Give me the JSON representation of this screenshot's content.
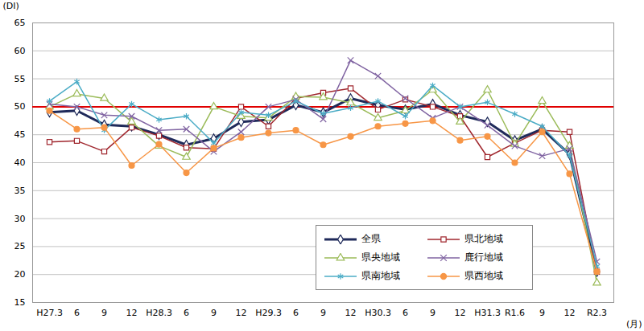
{
  "chart_data": {
    "type": "line",
    "x_label": "(月)",
    "y_label": "(DI)",
    "categories": [
      "H27.3",
      "6",
      "9",
      "12",
      "H28.3",
      "6",
      "9",
      "12",
      "H29.3",
      "6",
      "9",
      "12",
      "H30.3",
      "6",
      "9",
      "12",
      "H31.3",
      "R1.6",
      "9",
      "12",
      "R2.3"
    ],
    "series": [
      {
        "name": "全県",
        "color": "#1f2a5a",
        "marker": "diamond",
        "values": [
          49,
          49.3,
          46.8,
          46.5,
          45,
          43.2,
          44.3,
          47.3,
          47.7,
          50.3,
          49,
          51.5,
          50.3,
          49.5,
          50.5,
          48.5,
          47.3,
          44,
          46,
          41.5,
          20.5
        ]
      },
      {
        "name": "県北地域",
        "color": "#a0272e",
        "marker": "square",
        "values": [
          43.7,
          43.9,
          42,
          46.3,
          44.8,
          42.7,
          42.5,
          50,
          46.5,
          51.5,
          52.5,
          53.3,
          49.5,
          51.3,
          50,
          48.3,
          41,
          43.5,
          45.8,
          45.5,
          20.5
        ]
      },
      {
        "name": "県央地域",
        "color": "#9bbb59",
        "marker": "triangle",
        "values": [
          50,
          52.3,
          51.5,
          47.3,
          43,
          41,
          50,
          48.3,
          48,
          51.8,
          51.7,
          50.7,
          48,
          49.3,
          53,
          47.3,
          53,
          43.3,
          51,
          43,
          18.5
        ]
      },
      {
        "name": "鹿行地域",
        "color": "#8064a2",
        "marker": "times",
        "values": [
          50.5,
          50,
          48.5,
          48.3,
          45.8,
          46,
          42,
          45.5,
          50,
          51.3,
          47.8,
          58.3,
          55.5,
          51.5,
          48,
          50,
          46.7,
          43,
          41.2,
          42.5,
          22.3
        ]
      },
      {
        "name": "県南地域",
        "color": "#4bacc6",
        "marker": "asterisk",
        "values": [
          51,
          54.5,
          45.8,
          50.5,
          47.7,
          48.3,
          43.5,
          49,
          48.5,
          51,
          48.8,
          49.8,
          51,
          48.3,
          53.8,
          50,
          50.8,
          48.7,
          46.5,
          41.3,
          21.5
        ]
      },
      {
        "name": "県西地域",
        "color": "#f79646",
        "marker": "circle",
        "values": [
          49.3,
          46,
          46.3,
          39.5,
          43.3,
          38.2,
          42.6,
          44.5,
          45.3,
          45.8,
          43.2,
          44.7,
          46.5,
          47,
          47.5,
          44,
          44.7,
          40,
          45.5,
          38,
          20.5
        ]
      }
    ],
    "reference_line": {
      "value": 50,
      "color": "#e00000"
    },
    "ylim": [
      15,
      65
    ],
    "yticks": [
      15,
      20,
      25,
      30,
      35,
      40,
      45,
      50,
      55,
      60,
      65
    ],
    "grid": true,
    "legend": "bottom"
  }
}
